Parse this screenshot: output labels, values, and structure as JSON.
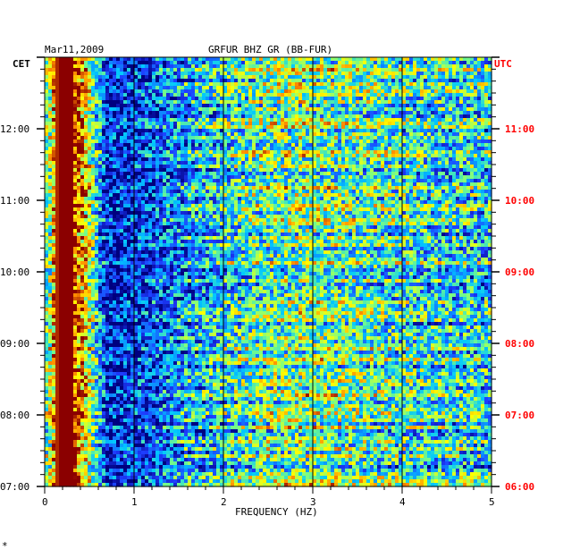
{
  "header": {
    "date": "Mar11,2009",
    "station": "GRFUR BHZ GR (BB-FUR)"
  },
  "chart_data": {
    "type": "heatmap",
    "title": "GRFUR BHZ GR (BB-FUR)",
    "xlabel": "FREQUENCY (HZ)",
    "xlim": [
      0,
      5
    ],
    "x_ticks": [
      "0",
      "1",
      "2",
      "3",
      "4",
      "5"
    ],
    "left_axis": {
      "label": "CET",
      "ticks": [
        {
          "label": "12:00",
          "hour_cet": 12
        },
        {
          "label": "11:00",
          "hour_cet": 11
        },
        {
          "label": "10:00",
          "hour_cet": 10
        },
        {
          "label": "09:00",
          "hour_cet": 9
        },
        {
          "label": "08:00",
          "hour_cet": 8
        },
        {
          "label": "07:00",
          "hour_cet": 7
        }
      ]
    },
    "right_axis": {
      "label": "UTC",
      "ticks": [
        {
          "label": "11:00",
          "hour_utc": 11
        },
        {
          "label": "10:00",
          "hour_utc": 10
        },
        {
          "label": "09:00",
          "hour_utc": 9
        },
        {
          "label": "08:00",
          "hour_utc": 8
        },
        {
          "label": "07:00",
          "hour_utc": 7
        },
        {
          "label": "06:00",
          "hour_utc": 6
        }
      ]
    },
    "ylim_cet_hours": [
      7,
      13
    ],
    "vertical_gridlines_hz": [
      1,
      2,
      3,
      4
    ],
    "colors": {
      "very_low": "#00007f",
      "low": "#1e3cff",
      "mid_low": "#00c8ff",
      "mid": "#7fff7f",
      "mid_high": "#ffff00",
      "high": "#ff8c00",
      "very_high": "#8b0000",
      "utc_text": "#ff0000"
    },
    "spectral_profile": [
      {
        "freq_hz": 0.05,
        "intensity": 0.55
      },
      {
        "freq_hz": 0.15,
        "intensity": 1.0
      },
      {
        "freq_hz": 0.3,
        "intensity": 1.0
      },
      {
        "freq_hz": 0.45,
        "intensity": 0.75
      },
      {
        "freq_hz": 0.7,
        "intensity": 0.12
      },
      {
        "freq_hz": 1.0,
        "intensity": 0.15
      },
      {
        "freq_hz": 1.5,
        "intensity": 0.3
      },
      {
        "freq_hz": 2.0,
        "intensity": 0.42
      },
      {
        "freq_hz": 2.5,
        "intensity": 0.52
      },
      {
        "freq_hz": 3.0,
        "intensity": 0.55
      },
      {
        "freq_hz": 3.5,
        "intensity": 0.5
      },
      {
        "freq_hz": 4.0,
        "intensity": 0.45
      },
      {
        "freq_hz": 4.5,
        "intensity": 0.42
      },
      {
        "freq_hz": 5.0,
        "intensity": 0.4
      }
    ]
  },
  "footer": {
    "mark": "*"
  }
}
